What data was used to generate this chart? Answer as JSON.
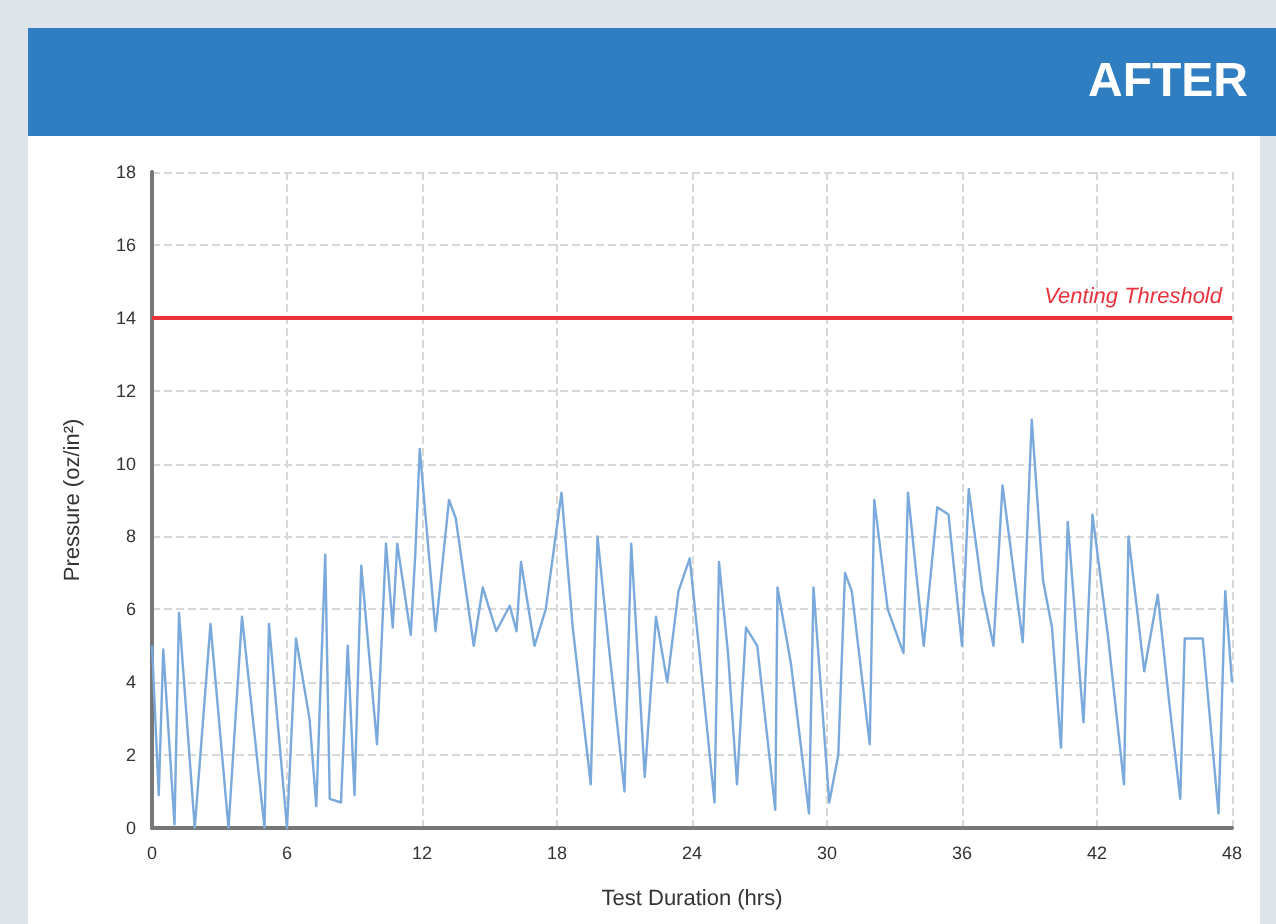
{
  "chart_data": {
    "type": "line",
    "title": "AFTER",
    "xlabel": "Test Duration (hrs)",
    "ylabel": "Pressure (oz/in²)",
    "x": [
      0,
      0.3,
      0.5,
      1.0,
      1.2,
      1.9,
      2.6,
      3.4,
      4.0,
      5.0,
      5.2,
      6.0,
      6.4,
      7.0,
      7.3,
      7.7,
      7.9,
      8.4,
      8.7,
      9.0,
      9.3,
      10.0,
      10.4,
      10.7,
      10.9,
      11.5,
      11.7,
      11.9,
      12.6,
      13.2,
      13.5,
      14.3,
      14.7,
      15.3,
      15.9,
      16.2,
      16.4,
      17.0,
      17.5,
      18.2,
      18.7,
      19.5,
      19.8,
      20.3,
      21.0,
      21.3,
      21.9,
      22.4,
      22.9,
      23.4,
      23.9,
      24.3,
      25.0,
      25.2,
      25.6,
      26.0,
      26.4,
      26.9,
      27.7,
      27.8,
      28.4,
      29.2,
      29.4,
      30.1,
      30.5,
      30.8,
      31.1,
      31.9,
      32.1,
      32.7,
      33.4,
      33.6,
      34.3,
      34.9,
      35.4,
      36.0,
      36.3,
      36.9,
      37.4,
      37.8,
      38.7,
      39.1,
      39.6,
      40.0,
      40.4,
      40.7,
      41.4,
      41.8,
      42.5,
      43.2,
      43.4,
      44.1,
      44.7,
      45.2,
      45.7,
      45.9,
      46.7,
      47.4,
      47.7,
      48.0
    ],
    "values": [
      5.0,
      0.9,
      4.9,
      0.1,
      5.9,
      0,
      5.6,
      0,
      5.8,
      0,
      5.6,
      0,
      5.2,
      3.0,
      0.6,
      7.5,
      0.8,
      0.7,
      5.0,
      0.9,
      7.2,
      2.3,
      7.8,
      5.5,
      7.8,
      5.3,
      7.5,
      10.4,
      5.4,
      9.0,
      8.5,
      5.0,
      6.6,
      5.4,
      6.1,
      5.4,
      7.3,
      5.0,
      6.0,
      9.2,
      5.5,
      1.2,
      8.0,
      5.0,
      1.0,
      7.8,
      1.4,
      5.8,
      4.0,
      6.5,
      7.4,
      5.0,
      0.7,
      7.3,
      4.8,
      1.2,
      5.5,
      5.0,
      0.5,
      6.6,
      4.5,
      0.4,
      6.6,
      0.7,
      2.0,
      7.0,
      6.5,
      2.3,
      9.0,
      6.0,
      4.8,
      9.2,
      5.0,
      8.8,
      8.6,
      5.0,
      9.3,
      6.5,
      5.0,
      9.4,
      5.1,
      11.2,
      6.8,
      5.5,
      2.2,
      8.4,
      2.9,
      8.6,
      5.2,
      1.2,
      8.0,
      4.3,
      6.4,
      3.5,
      0.8,
      5.2,
      5.2,
      0.4,
      6.5,
      4.0
    ],
    "color": "#7aa9dc",
    "xlim": [
      0,
      48
    ],
    "ylim": [
      0,
      18
    ],
    "xticks": [
      0,
      6,
      12,
      18,
      24,
      30,
      36,
      42,
      48
    ],
    "yticks": [
      0,
      2,
      4,
      6,
      8,
      10,
      12,
      14,
      16,
      18
    ],
    "grid": true,
    "ref_lines": [
      {
        "axis": "y",
        "value": 14,
        "label": "Venting Threshold",
        "color": "#e8323c"
      }
    ]
  }
}
